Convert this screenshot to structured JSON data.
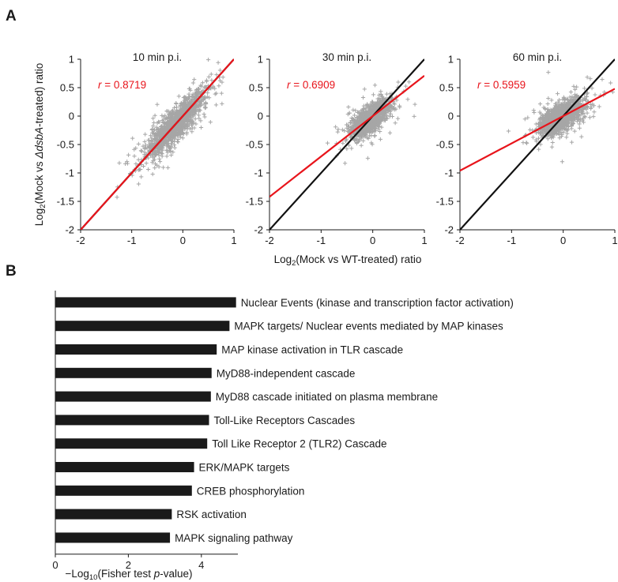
{
  "panel_a": {
    "letter": "A"
  },
  "panel_b": {
    "letter": "B"
  },
  "colors": {
    "points": "#a6a6a6",
    "fit": "#e8141b",
    "identity": "#111111",
    "bars": "#1a1a1a",
    "r_text": "#e8141b"
  },
  "chart_data": [
    {
      "type": "scatter",
      "title": "10 min p.i.",
      "r_prefix": "r",
      "r_value": "= 0.8719",
      "xlim": [
        -2,
        1
      ],
      "ylim": [
        -2,
        1
      ],
      "xticks": [
        -2,
        -1,
        0,
        1
      ],
      "yticks": [
        1,
        0.5,
        0,
        -0.5,
        -1,
        -1.5,
        -2
      ],
      "fit_line": {
        "slope": 1.0,
        "intercept": 0.0
      },
      "identity_line": true,
      "point_cloud": {
        "center": [
          -0.15,
          -0.15
        ],
        "spread_x": 0.28,
        "spread_y": 0.28,
        "correlation": 0.87
      }
    },
    {
      "type": "scatter",
      "title": "30 min p.i.",
      "r_prefix": "r",
      "r_value": "= 0.6909",
      "xlim": [
        -2,
        1
      ],
      "ylim": [
        -2,
        1
      ],
      "xticks": [
        -2,
        -1,
        0,
        1
      ],
      "yticks": [
        1,
        0.5,
        0,
        -0.5,
        -1,
        -1.5,
        -2
      ],
      "fit_line": {
        "slope": 0.71,
        "intercept": 0.0
      },
      "identity_line": true,
      "point_cloud": {
        "center": [
          -0.05,
          -0.05
        ],
        "spread_x": 0.17,
        "spread_y": 0.15,
        "correlation": 0.69
      }
    },
    {
      "type": "scatter",
      "title": "60 min p.i.",
      "r_prefix": "r",
      "r_value": "= 0.5959",
      "xlim": [
        -2,
        1
      ],
      "ylim": [
        -2,
        1
      ],
      "xticks": [
        -2,
        -1,
        0,
        1
      ],
      "yticks": [
        1,
        0.5,
        0,
        -0.5,
        -1,
        -1.5,
        -2
      ],
      "fit_line": {
        "slope": 0.48,
        "intercept": 0.0
      },
      "identity_line": true,
      "point_cloud": {
        "center": [
          -0.05,
          -0.02
        ],
        "spread_x": 0.2,
        "spread_y": 0.14,
        "correlation": 0.6
      }
    },
    {
      "type": "bar",
      "orientation": "horizontal",
      "categories": [
        "Nuclear Events (kinase and transcription factor activation)",
        "MAPK targets/ Nuclear events mediated by MAP kinases",
        "MAP kinase activation in TLR cascade",
        "MyD88-independent cascade",
        "MyD88 cascade initiated on plasma membrane",
        "Toll-Like Receptors Cascades",
        "Toll Like Receptor 2 (TLR2) Cascade",
        "ERK/MAPK targets",
        "CREB phosphorylation",
        "RSK activation",
        "MAPK signaling pathway"
      ],
      "values": [
        4.95,
        4.77,
        4.42,
        4.28,
        4.26,
        4.21,
        4.16,
        3.8,
        3.74,
        3.19,
        3.14
      ],
      "xlim": [
        0,
        5
      ],
      "xticks": [
        0,
        2,
        4
      ]
    }
  ],
  "labels": {
    "a_xlabel_pre": "Log",
    "a_xlabel_sub": "2",
    "a_xlabel_post": "(Mock vs WT-treated) ratio",
    "a_ylabel_pre": "Log",
    "a_ylabel_sub": "2",
    "a_ylabel_mid": "(Mock vs ",
    "a_ylabel_ital": "ΔdsbA",
    "a_ylabel_post": "-treated) ratio",
    "b_xlabel_pre": "−Log",
    "b_xlabel_sub": "10",
    "b_xlabel_mid": "(Fisher test ",
    "b_xlabel_ital": "p",
    "b_xlabel_post": "-value)"
  }
}
